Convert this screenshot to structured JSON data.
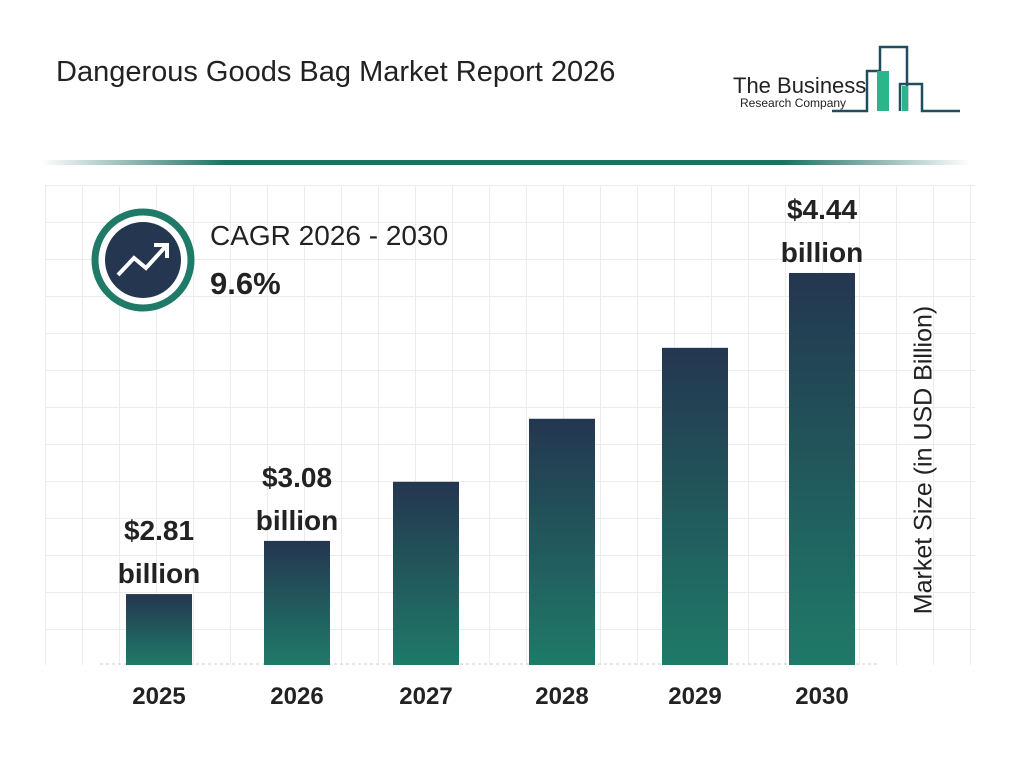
{
  "title": "Dangerous Goods Bag Market Report 2026",
  "logo": {
    "line1": "The Business",
    "line2": "Research Company"
  },
  "cagr": {
    "label": "CAGR 2026 - 2030",
    "value": "9.6%",
    "icon": "trend-up-icon"
  },
  "colors": {
    "bar_top": "#243650",
    "bar_bottom": "#1f7a68",
    "accent": "#1f6f63"
  },
  "chart_data": {
    "type": "bar",
    "categories": [
      "2025",
      "2026",
      "2027",
      "2028",
      "2029",
      "2030"
    ],
    "values": [
      2.81,
      3.08,
      3.38,
      3.7,
      4.06,
      4.44
    ],
    "data_labels": [
      [
        "$2.81",
        "billion"
      ],
      [
        "$3.08",
        "billion"
      ],
      null,
      null,
      null,
      [
        "$4.44",
        "billion"
      ]
    ],
    "xlabel": "",
    "ylabel": "Market Size (in USD Billion)",
    "grid": true
  }
}
